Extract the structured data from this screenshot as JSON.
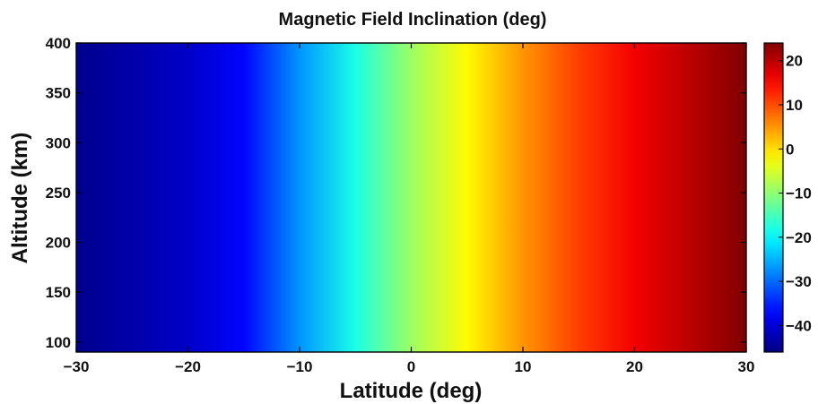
{
  "chart_data": {
    "type": "heatmap",
    "title": "Magnetic Field Inclination (deg)",
    "xlabel": "Latitude (deg)",
    "ylabel": "Altitude (km)",
    "xlim": [
      -30,
      30
    ],
    "ylim": [
      90,
      400
    ],
    "x_ticks": [
      -30,
      -20,
      -10,
      0,
      10,
      20,
      30
    ],
    "x_tick_labels": [
      "−30",
      "−20",
      "−10",
      "0",
      "10",
      "20",
      "30"
    ],
    "y_ticks": [
      100,
      150,
      200,
      250,
      300,
      350,
      400
    ],
    "y_tick_labels": [
      "100",
      "150",
      "200",
      "250",
      "300",
      "350",
      "400"
    ],
    "colorbar": {
      "range": [
        -46,
        24
      ],
      "ticks": [
        20,
        10,
        0,
        -10,
        -20,
        -30,
        -40
      ],
      "tick_labels": [
        "20",
        "10",
        "0",
        "−10",
        "−20",
        "−30",
        "−40"
      ],
      "colormap": "jet"
    },
    "profile": {
      "latitude": [
        -30,
        -25,
        -20,
        -15,
        -10,
        -5,
        0,
        5,
        10,
        15,
        20,
        25,
        30
      ],
      "inclination": [
        -45,
        -43,
        -41,
        -37,
        -27,
        -18,
        -9,
        -2,
        5,
        11,
        16,
        20,
        24
      ]
    },
    "grid": false,
    "colors": {
      "axis": "#000000",
      "background": "#ffffff"
    }
  }
}
